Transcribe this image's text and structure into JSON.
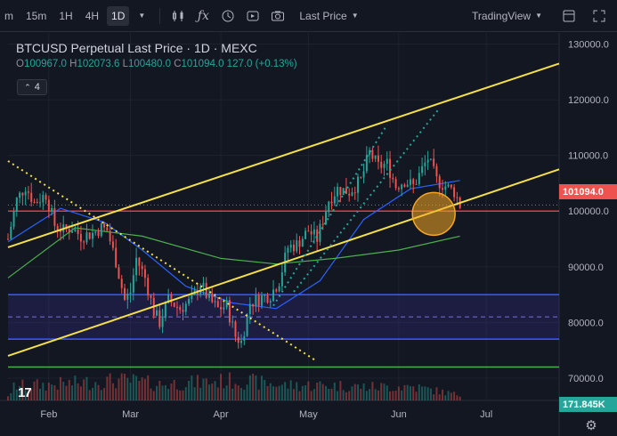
{
  "toolbar": {
    "intervals": [
      "m",
      "15m",
      "1H",
      "4H",
      "1D"
    ],
    "active_interval": "1D",
    "price_type": "Last Price",
    "source": "TradingView",
    "icons": [
      "chevron-down-icon",
      "candles-icon",
      "function-icon",
      "compare-icon",
      "alert-icon",
      "replay-icon",
      "camera-icon",
      "layout-icon",
      "fullscreen-icon"
    ]
  },
  "legend": {
    "title": "BTCUSD Perpetual Last Price · 1D · MEXC",
    "open_label": "O",
    "open": "100967.0",
    "high_label": "H",
    "high": "102073.6",
    "low_label": "L",
    "low": "100480.0",
    "close_label": "C",
    "close": "101094.0",
    "change": "127.0 (+0.13%)",
    "indicator_count": "4"
  },
  "price_axis": {
    "ticks": [
      "130000.0",
      "120000.0",
      "110000.0",
      "100000.0",
      "90000.0",
      "80000.0",
      "70000.0"
    ],
    "current_price": "101094.0",
    "volume_value": "171.845K"
  },
  "time_axis": {
    "ticks": [
      "Feb",
      "Mar",
      "Apr",
      "May",
      "Jun",
      "Jul"
    ]
  },
  "colors": {
    "up": "#26a69a",
    "down": "#ef5350",
    "trendline": "#f5e04a",
    "support": "#e63946",
    "background": "#131722"
  },
  "chart_data": {
    "type": "candlestick",
    "symbol": "BTCUSD Perpetual",
    "exchange": "MEXC",
    "interval": "1D",
    "ylim": [
      66000,
      132000
    ],
    "xlim": [
      "2025-01-18",
      "2025-07-26"
    ],
    "close_path": [
      [
        "2025-01-18",
        95000
      ],
      [
        "2025-01-21",
        102000
      ],
      [
        "2025-01-24",
        104500
      ],
      [
        "2025-01-27",
        101500
      ],
      [
        "2025-01-31",
        103000
      ],
      [
        "2025-02-03",
        97500
      ],
      [
        "2025-02-06",
        96500
      ],
      [
        "2025-02-09",
        97000
      ],
      [
        "2025-02-12",
        95500
      ],
      [
        "2025-02-16",
        96000
      ],
      [
        "2025-02-19",
        97000
      ],
      [
        "2025-02-21",
        96500
      ],
      [
        "2025-02-24",
        91000
      ],
      [
        "2025-02-27",
        84000
      ],
      [
        "2025-03-01",
        85500
      ],
      [
        "2025-03-03",
        91500
      ],
      [
        "2025-03-06",
        88000
      ],
      [
        "2025-03-09",
        82000
      ],
      [
        "2025-03-11",
        80000
      ],
      [
        "2025-03-14",
        84000
      ],
      [
        "2025-03-18",
        82500
      ],
      [
        "2025-03-22",
        84000
      ],
      [
        "2025-03-25",
        87000
      ],
      [
        "2025-03-28",
        84000
      ],
      [
        "2025-03-31",
        82500
      ],
      [
        "2025-04-03",
        83000
      ],
      [
        "2025-04-06",
        77500
      ],
      [
        "2025-04-08",
        76500
      ],
      [
        "2025-04-11",
        83500
      ],
      [
        "2025-04-15",
        84500
      ],
      [
        "2025-04-18",
        85000
      ],
      [
        "2025-04-21",
        87500
      ],
      [
        "2025-04-24",
        93500
      ],
      [
        "2025-04-27",
        94000
      ],
      [
        "2025-05-01",
        96500
      ],
      [
        "2025-05-04",
        95000
      ],
      [
        "2025-05-08",
        102000
      ],
      [
        "2025-05-11",
        104000
      ],
      [
        "2025-05-15",
        103500
      ],
      [
        "2025-05-19",
        105500
      ],
      [
        "2025-05-22",
        110500
      ],
      [
        "2025-05-25",
        108000
      ],
      [
        "2025-05-28",
        108500
      ],
      [
        "2025-05-31",
        104500
      ],
      [
        "2025-06-03",
        105500
      ],
      [
        "2025-06-06",
        104500
      ],
      [
        "2025-06-09",
        107500
      ],
      [
        "2025-06-11",
        109500
      ],
      [
        "2025-06-14",
        105500
      ],
      [
        "2025-06-17",
        104500
      ],
      [
        "2025-06-20",
        103500
      ],
      [
        "2025-06-22",
        101094
      ]
    ],
    "volume_path": [
      [
        "2025-01-20",
        3.2
      ],
      [
        "2025-02-03",
        3.6
      ],
      [
        "2025-02-25",
        4.5
      ],
      [
        "2025-03-04",
        4.2
      ],
      [
        "2025-03-10",
        3.6
      ],
      [
        "2025-04-07",
        4.5
      ],
      [
        "2025-04-23",
        3.4
      ],
      [
        "2025-05-08",
        3.4
      ],
      [
        "2025-05-22",
        3.0
      ],
      [
        "2025-06-05",
        3.2
      ],
      [
        "2025-06-22",
        1.2
      ]
    ],
    "moving_averages": [
      {
        "color": "#2962ff",
        "points": [
          [
            "2025-01-18",
            94500
          ],
          [
            "2025-02-05",
            100500
          ],
          [
            "2025-02-20",
            98000
          ],
          [
            "2025-03-05",
            93000
          ],
          [
            "2025-03-20",
            86500
          ],
          [
            "2025-04-05",
            83500
          ],
          [
            "2025-04-20",
            82500
          ],
          [
            "2025-05-05",
            87500
          ],
          [
            "2025-05-20",
            98500
          ],
          [
            "2025-06-05",
            104000
          ],
          [
            "2025-06-22",
            105500
          ]
        ]
      },
      {
        "color": "#4caf50",
        "points": [
          [
            "2025-01-18",
            88000
          ],
          [
            "2025-02-10",
            97000
          ],
          [
            "2025-03-05",
            95500
          ],
          [
            "2025-04-01",
            91500
          ],
          [
            "2025-04-20",
            90500
          ],
          [
            "2025-05-10",
            91500
          ],
          [
            "2025-06-01",
            93000
          ],
          [
            "2025-06-22",
            95500
          ]
        ]
      }
    ],
    "trendlines": [
      {
        "style": "solid",
        "color": "#f5e04a",
        "points": [
          [
            "2025-01-18",
            93500
          ],
          [
            "2025-07-26",
            126500
          ]
        ]
      },
      {
        "style": "solid",
        "color": "#f5e04a",
        "points": [
          [
            "2025-01-18",
            74000
          ],
          [
            "2025-07-26",
            107500
          ]
        ]
      },
      {
        "style": "dotted",
        "color": "#f5e04a",
        "points": [
          [
            "2025-01-18",
            109000
          ],
          [
            "2025-05-04",
            73000
          ]
        ]
      },
      {
        "style": "dotted",
        "color": "#26a69a",
        "points": [
          [
            "2025-04-19",
            83000
          ],
          [
            "2025-05-28",
            115500
          ]
        ]
      },
      {
        "style": "dotted",
        "color": "#26a69a",
        "points": [
          [
            "2025-04-26",
            85500
          ],
          [
            "2025-06-15",
            118500
          ]
        ]
      }
    ],
    "horizontal_lines": [
      {
        "value": 100000,
        "color": "#e63946",
        "style": "solid"
      },
      {
        "value": 72000,
        "color": "#4caf50",
        "style": "solid"
      },
      {
        "value": 101094,
        "color": "#787b86",
        "style": "dotted"
      }
    ],
    "zones": [
      {
        "from": 77000,
        "to": 85000,
        "color": "#3f35b0",
        "mid": 81000
      }
    ],
    "highlight_circle": {
      "center": [
        "2025-06-13",
        99500
      ],
      "color": "#f5a623"
    }
  }
}
